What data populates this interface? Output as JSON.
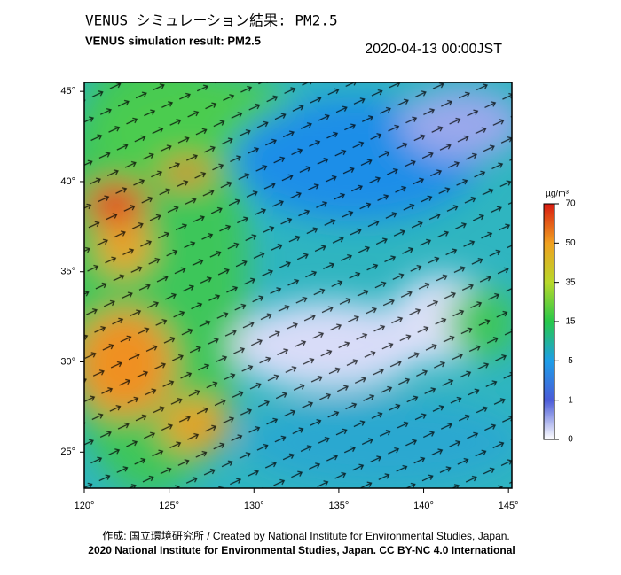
{
  "header": {
    "title_ja": "VENUS シミュレーション結果: PM2.5",
    "title_en": "VENUS simulation result: PM2.5",
    "timestamp": "2020-04-13 00:00JST"
  },
  "map": {
    "lon_range": [
      120,
      145.2
    ],
    "lat_range": [
      23,
      45.5
    ],
    "lon_ticks": [
      {
        "value": 120,
        "label": "120°"
      },
      {
        "value": 125,
        "label": "125°"
      },
      {
        "value": 130,
        "label": "130°"
      },
      {
        "value": 135,
        "label": "135°"
      },
      {
        "value": 140,
        "label": "140°"
      },
      {
        "value": 145,
        "label": "145°"
      }
    ],
    "lat_ticks": [
      {
        "value": 45,
        "label": "45°"
      },
      {
        "value": 40,
        "label": "40°"
      },
      {
        "value": 35,
        "label": "35°"
      },
      {
        "value": 30,
        "label": "30°"
      },
      {
        "value": 25,
        "label": "25°"
      }
    ]
  },
  "colorbar": {
    "unit": "µg/m³",
    "ticks": [
      0,
      1,
      5,
      15,
      35,
      50,
      70
    ],
    "colors": [
      "#ffffff",
      "#4a5bd8",
      "#1e9ee8",
      "#27c84a",
      "#b8d82a",
      "#f0a020",
      "#d81a10"
    ]
  },
  "footer": {
    "credit": "作成: 国立環境研究所 / Created by National Institute for Environmental Studies, Japan.",
    "copyright": "2020 National Institute for Environmental Studies, Japan. CC BY-NC 4.0 International"
  }
}
